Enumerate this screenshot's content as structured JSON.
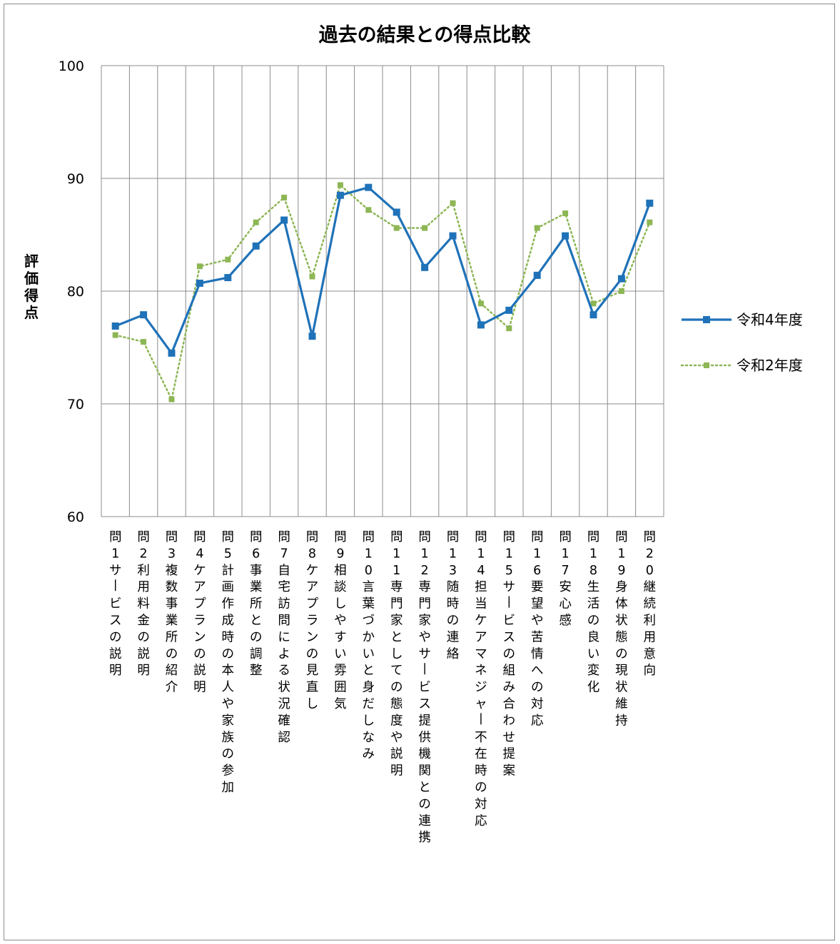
{
  "chart_data": {
    "type": "line",
    "title": "過去の結果との得点比較",
    "ylabel": "評価得点",
    "xlabel": "",
    "ylim": [
      60,
      100
    ],
    "yticks": [
      "60",
      "70",
      "80",
      "90",
      "100"
    ],
    "grid": true,
    "legend_position": "right",
    "categories": [
      "問１サービスの説明",
      "問２利用料金の説明",
      "問３複数事業所の紹介",
      "問４ケアプランの説明",
      "問５計画作成時の本人や家族の参加",
      "問６事業所との調整",
      "問７自宅訪問による状況確認",
      "問８ケアプランの見直し",
      "問９相談しやすい雰囲気",
      "問１０言葉づかいと身だしなみ",
      "問１１専門家としての態度や説明",
      "問１２専門家やサービス提供機関との連携",
      "問１３随時の連絡",
      "問１４担当ケアマネジャー不在時の対応",
      "問１５サービスの組み合わせ提案",
      "問１６要望や苦情への対応",
      "問１７安心感",
      "問１８生活の良い変化",
      "問１９身体状態の現状維持",
      "問２０継続利用意向"
    ],
    "series": [
      {
        "name": "令和4年度",
        "color": "#1f72b8",
        "style": "solid",
        "values": [
          76.9,
          77.9,
          74.5,
          80.7,
          81.2,
          84.0,
          86.3,
          76.0,
          88.5,
          89.2,
          87.0,
          82.1,
          84.9,
          77.0,
          78.3,
          81.4,
          84.9,
          77.9,
          81.1,
          87.8
        ]
      },
      {
        "name": "令和2年度",
        "color": "#8db654",
        "style": "dotted",
        "values": [
          76.1,
          75.5,
          70.4,
          82.2,
          82.8,
          86.1,
          88.3,
          81.3,
          89.4,
          87.2,
          85.6,
          85.6,
          87.8,
          78.9,
          76.7,
          85.6,
          86.9,
          78.9,
          80.0,
          86.1
        ]
      }
    ]
  }
}
